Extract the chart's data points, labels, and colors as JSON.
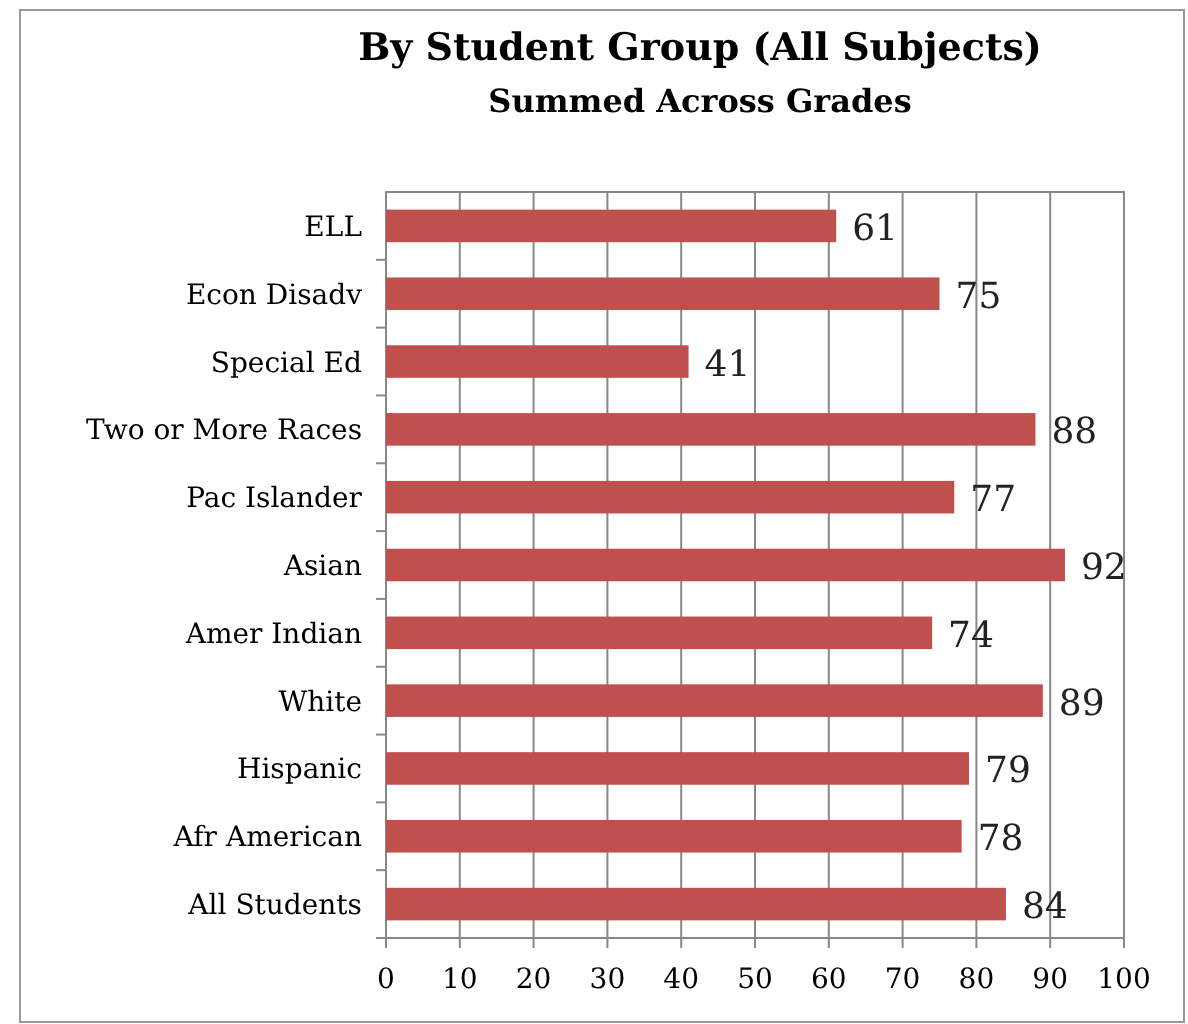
{
  "chart_data": {
    "type": "bar",
    "orientation": "horizontal",
    "title": "By Student Group (All Subjects)",
    "subtitle": "Summed Across Grades",
    "categories": [
      "ELL",
      "Econ Disadv",
      "Special Ed",
      "Two or More Races",
      "Pac Islander",
      "Asian",
      "Amer Indian",
      "White",
      "Hispanic",
      "Afr American",
      "All Students"
    ],
    "values": [
      61,
      75,
      41,
      88,
      77,
      92,
      74,
      89,
      79,
      78,
      84
    ],
    "color": "#c0504d",
    "xlim": [
      0,
      100
    ],
    "xticks": [
      0,
      10,
      20,
      30,
      40,
      50,
      60,
      70,
      80,
      90,
      100
    ],
    "grid": "x",
    "data_labels": true
  }
}
